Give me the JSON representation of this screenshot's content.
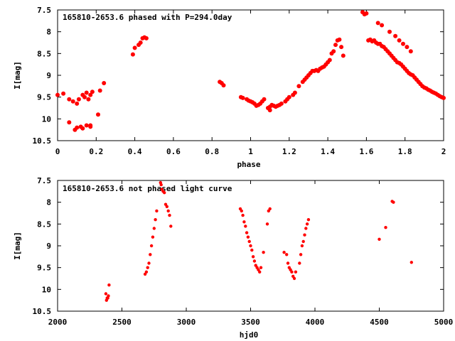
{
  "colors": {
    "points": "#ff0000",
    "axes": "#000000",
    "background": "#ffffff"
  },
  "chart_data": [
    {
      "type": "scatter",
      "title": "165810-2653.6 phased with P=294.0day",
      "xlabel": "phase",
      "ylabel": "I[mag]",
      "xlim": [
        0,
        2
      ],
      "ylim": [
        7.5,
        10.5
      ],
      "y_inverted": true,
      "xticks": [
        "0",
        "0.2",
        "0.4",
        "0.6",
        "0.8",
        "1",
        "1.2",
        "1.4",
        "1.6",
        "1.8",
        "2"
      ],
      "yticks": [
        "7.5",
        "8",
        "8.5",
        "9",
        "9.5",
        "10",
        "10.5"
      ],
      "grid": false,
      "series": [
        {
          "x": [
            0.0,
            0.03,
            0.06,
            0.06,
            0.08,
            0.09,
            0.1,
            0.1,
            0.11,
            0.12,
            0.13,
            0.13,
            0.14,
            0.15,
            0.15,
            0.16,
            0.17,
            0.17,
            0.17,
            0.18,
            0.21,
            0.22,
            0.24,
            0.39,
            0.4,
            0.42,
            0.43,
            0.44,
            0.45,
            0.46,
            0.84,
            0.85,
            0.86,
            0.95,
            0.96,
            0.98,
            0.99,
            1.0,
            1.01,
            1.02,
            1.03,
            1.04,
            1.05,
            1.06,
            1.07,
            1.09,
            1.1,
            1.1,
            1.11,
            1.12,
            1.13,
            1.14,
            1.15,
            1.16,
            1.18,
            1.19,
            1.2,
            1.22,
            1.23,
            1.25,
            1.27,
            1.28,
            1.29,
            1.3,
            1.31,
            1.32,
            1.33,
            1.34,
            1.35,
            1.36,
            1.37,
            1.38,
            1.39,
            1.4,
            1.41,
            1.42,
            1.43,
            1.44,
            1.45,
            1.46,
            1.47,
            1.48,
            1.58,
            1.59,
            1.6,
            1.61,
            1.62,
            1.63,
            1.64,
            1.65,
            1.66,
            1.67,
            1.68,
            1.69,
            1.7,
            1.71,
            1.72,
            1.73,
            1.74,
            1.75,
            1.76,
            1.77,
            1.78,
            1.79,
            1.8,
            1.81,
            1.82,
            1.83,
            1.84,
            1.85,
            1.86,
            1.87,
            1.88,
            1.89,
            1.9,
            1.91,
            1.92,
            1.93,
            1.94,
            1.95,
            1.96,
            1.97,
            1.98,
            1.99,
            2.0,
            1.66,
            1.68,
            1.72,
            1.75,
            1.77,
            1.79,
            1.81,
            1.83
          ],
          "y": [
            9.45,
            9.42,
            9.55,
            10.08,
            9.6,
            10.25,
            9.65,
            10.2,
            9.55,
            10.18,
            9.45,
            10.22,
            9.5,
            9.4,
            10.15,
            9.55,
            9.45,
            10.18,
            10.15,
            9.38,
            9.9,
            9.35,
            9.18,
            8.52,
            8.37,
            8.3,
            8.25,
            8.15,
            8.13,
            8.15,
            9.15,
            9.18,
            9.23,
            9.5,
            9.52,
            9.55,
            9.58,
            9.6,
            9.62,
            9.65,
            9.7,
            9.68,
            9.65,
            9.6,
            9.55,
            9.75,
            9.8,
            9.72,
            9.68,
            9.7,
            9.72,
            9.7,
            9.68,
            9.65,
            9.6,
            9.55,
            9.5,
            9.45,
            9.4,
            9.25,
            9.15,
            9.1,
            9.05,
            9.0,
            8.95,
            8.9,
            8.9,
            8.88,
            8.9,
            8.85,
            8.82,
            8.8,
            8.75,
            8.7,
            8.65,
            8.5,
            8.45,
            8.3,
            8.2,
            8.18,
            8.35,
            8.55,
            7.55,
            7.6,
            7.58,
            8.2,
            8.18,
            8.22,
            8.2,
            8.25,
            8.28,
            8.28,
            8.33,
            8.35,
            8.4,
            8.45,
            8.5,
            8.55,
            8.6,
            8.65,
            8.7,
            8.72,
            8.75,
            8.8,
            8.85,
            8.9,
            8.95,
            8.98,
            9.0,
            9.05,
            9.1,
            9.15,
            9.2,
            9.25,
            9.28,
            9.3,
            9.33,
            9.35,
            9.38,
            9.4,
            9.42,
            9.45,
            9.48,
            9.5,
            9.52,
            7.8,
            7.85,
            8.0,
            8.1,
            8.2,
            8.28,
            8.35,
            8.45
          ]
        }
      ]
    },
    {
      "type": "scatter",
      "title": "165810-2653.6 not phased light curve",
      "xlabel": "hjd0",
      "ylabel": "I[mag]",
      "xlim": [
        2000,
        5000
      ],
      "ylim": [
        7.5,
        10.5
      ],
      "y_inverted": true,
      "xticks": [
        "2000",
        "2500",
        "3000",
        "3500",
        "4000",
        "4500",
        "5000"
      ],
      "yticks": [
        "7.5",
        "8",
        "8.5",
        "9",
        "9.5",
        "10",
        "10.5"
      ],
      "grid": false,
      "series": [
        {
          "x": [
            2375,
            2380,
            2385,
            2390,
            2395,
            2400,
            2680,
            2690,
            2700,
            2710,
            2720,
            2730,
            2740,
            2750,
            2760,
            2770,
            2800,
            2805,
            2810,
            2820,
            2830,
            2840,
            2850,
            2860,
            2870,
            2880,
            3420,
            3430,
            3440,
            3450,
            3460,
            3470,
            3480,
            3490,
            3500,
            3510,
            3520,
            3530,
            3540,
            3550,
            3560,
            3570,
            3580,
            3600,
            3630,
            3640,
            3650,
            3760,
            3780,
            3790,
            3800,
            3810,
            3820,
            3830,
            3840,
            3850,
            3880,
            3890,
            3900,
            3910,
            3920,
            3930,
            3940,
            3950,
            4500,
            4550,
            4600,
            4610,
            4750
          ],
          "y": [
            10.1,
            10.25,
            10.2,
            10.2,
            10.15,
            9.9,
            9.65,
            9.6,
            9.5,
            9.4,
            9.2,
            9.0,
            8.8,
            8.6,
            8.4,
            8.2,
            7.55,
            7.6,
            7.7,
            7.75,
            7.78,
            8.05,
            8.1,
            8.2,
            8.3,
            8.55,
            8.15,
            8.2,
            8.3,
            8.45,
            8.55,
            8.7,
            8.8,
            8.9,
            9.0,
            9.1,
            9.25,
            9.35,
            9.45,
            9.5,
            9.55,
            9.6,
            9.5,
            9.15,
            8.5,
            8.2,
            8.15,
            9.15,
            9.2,
            9.4,
            9.5,
            9.55,
            9.6,
            9.7,
            9.75,
            9.6,
            9.4,
            9.2,
            9.0,
            8.9,
            8.75,
            8.6,
            8.5,
            8.4,
            8.85,
            8.58,
            7.98,
            8.0,
            9.38
          ]
        }
      ]
    }
  ]
}
